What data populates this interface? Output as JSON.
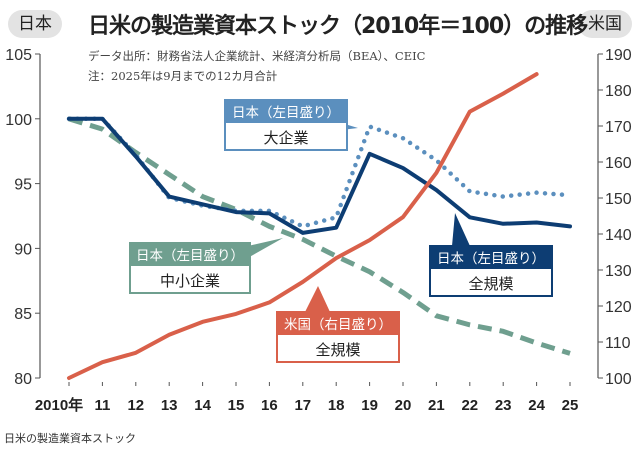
{
  "header": {
    "left_axis_tag": "日本",
    "right_axis_tag": "米国",
    "title": "日米の製造業資本ストック（2010年＝100）の推移",
    "source": "データ出所：財務省法人企業統計、米経済分析局（BEA）、CEIC",
    "note": "注：2025年は9月までの12カ月合計"
  },
  "caption": "日米の製造業資本ストック",
  "chart_data": {
    "type": "line",
    "title": "日米の製造業資本ストック（2010年＝100）の推移",
    "x": [
      2010,
      2011,
      2012,
      2013,
      2014,
      2015,
      2016,
      2017,
      2018,
      2019,
      2020,
      2021,
      2022,
      2023,
      2024,
      2025
    ],
    "x_tick_labels": [
      "2010年",
      "11",
      "12",
      "13",
      "14",
      "15",
      "16",
      "17",
      "18",
      "19",
      "20",
      "21",
      "22",
      "23",
      "24",
      "25"
    ],
    "left_axis": {
      "label": "日本",
      "ylim": [
        80,
        105
      ],
      "ticks": [
        80,
        85,
        90,
        95,
        100,
        105
      ]
    },
    "right_axis": {
      "label": "米国",
      "ylim": [
        100,
        190
      ],
      "ticks": [
        100,
        110,
        120,
        130,
        140,
        150,
        160,
        170,
        180,
        190
      ]
    },
    "grid": false,
    "series": [
      {
        "name": "日本（左目盛り）全規模",
        "label_top": "日本（左目盛り）",
        "label_bottom": "全規模",
        "axis": "left",
        "style": "solid",
        "color": "#0d3d73",
        "values": [
          100,
          100,
          97.1,
          94.0,
          93.4,
          92.8,
          92.7,
          91.2,
          91.6,
          97.3,
          96.2,
          94.5,
          92.4,
          91.9,
          92.0,
          91.7
        ]
      },
      {
        "name": "日本（左目盛り）大企業",
        "label_top": "日本（左目盛り）",
        "label_bottom": "大企業",
        "axis": "left",
        "style": "dotted",
        "color": "#5b8fbe",
        "values": [
          100,
          100,
          97.2,
          93.9,
          93.3,
          92.9,
          92.9,
          91.7,
          92.4,
          99.4,
          98.5,
          96.8,
          94.4,
          94.0,
          94.3,
          94.1
        ]
      },
      {
        "name": "日本（左目盛り）中小企業",
        "label_top": "日本（左目盛り）",
        "label_bottom": "中小企業",
        "axis": "left",
        "style": "dashed",
        "color": "#6f9f8f",
        "values": [
          100,
          99.2,
          97.4,
          95.7,
          94.0,
          93.0,
          91.7,
          90.7,
          89.4,
          88.2,
          86.6,
          84.8,
          84.1,
          83.6,
          82.7,
          81.9
        ]
      },
      {
        "name": "米国（右目盛り）全規模",
        "label_top": "米国（右目盛り）",
        "label_bottom": "全規模",
        "axis": "right",
        "style": "solid",
        "color": "#d9604a",
        "values": [
          100,
          104.4,
          107,
          112,
          115.6,
          117.8,
          121,
          126.7,
          133.3,
          138.3,
          144.7,
          157,
          174,
          179,
          184.4,
          null
        ]
      }
    ]
  }
}
